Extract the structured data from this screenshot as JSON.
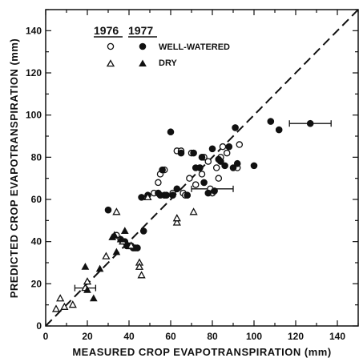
{
  "chart_data": {
    "type": "scatter",
    "xlabel": "MEASURED CROP EVAPOTRANSPIRATION (mm)",
    "ylabel": "PREDICTED CROP EVAPOTRANSPIRATION (mm)",
    "xlim": [
      0,
      150
    ],
    "ylim": [
      0,
      150
    ],
    "x_ticks": [
      0,
      20,
      40,
      60,
      80,
      100,
      120,
      140
    ],
    "y_ticks": [
      0,
      20,
      40,
      60,
      80,
      100,
      120,
      140
    ],
    "reference_line": "1:1",
    "legend": {
      "placement": "top-left",
      "years": [
        "1976",
        "1977"
      ],
      "rows": [
        "WELL-WATERED",
        "DRY"
      ]
    },
    "series": [
      {
        "name": "1976 WELL-WATERED",
        "marker": "open-circle",
        "points": [
          [
            34,
            43
          ],
          [
            36,
            41
          ],
          [
            52,
            63
          ],
          [
            54,
            68
          ],
          [
            55,
            72
          ],
          [
            57,
            74
          ],
          [
            61,
            63
          ],
          [
            63,
            83
          ],
          [
            65,
            83
          ],
          [
            66,
            63
          ],
          [
            67,
            62
          ],
          [
            69,
            70
          ],
          [
            70,
            82
          ],
          [
            72,
            67
          ],
          [
            74,
            75
          ],
          [
            75,
            72
          ],
          [
            76,
            80
          ],
          [
            78,
            78
          ],
          [
            79,
            65
          ],
          [
            80,
            63
          ],
          [
            82,
            75
          ],
          [
            83,
            70
          ],
          [
            84,
            80
          ],
          [
            85,
            85
          ],
          [
            87,
            82
          ],
          [
            92,
            75
          ],
          [
            93,
            86
          ]
        ]
      },
      {
        "name": "1977 WELL-WATERED",
        "marker": "filled-circle",
        "points": [
          [
            30,
            55
          ],
          [
            38,
            40
          ],
          [
            39,
            38
          ],
          [
            40,
            38
          ],
          [
            41,
            38
          ],
          [
            42,
            37
          ],
          [
            43,
            37
          ],
          [
            44,
            37
          ],
          [
            46,
            61
          ],
          [
            47,
            45
          ],
          [
            49,
            62
          ],
          [
            54,
            63
          ],
          [
            55,
            62
          ],
          [
            56,
            74
          ],
          [
            57,
            62
          ],
          [
            58,
            62
          ],
          [
            60,
            92
          ],
          [
            61,
            62
          ],
          [
            63,
            65
          ],
          [
            65,
            82
          ],
          [
            68,
            62
          ],
          [
            71,
            82
          ],
          [
            72,
            75
          ],
          [
            74,
            75
          ],
          [
            75,
            80
          ],
          [
            76,
            68
          ],
          [
            78,
            63
          ],
          [
            80,
            84
          ],
          [
            81,
            64
          ],
          [
            83,
            79
          ],
          [
            84,
            78
          ],
          [
            86,
            76
          ],
          [
            88,
            85
          ],
          [
            90,
            75
          ],
          [
            91,
            94
          ],
          [
            92,
            77
          ],
          [
            100,
            76
          ],
          [
            108,
            97
          ],
          [
            112,
            93
          ],
          [
            127,
            96
          ]
        ]
      },
      {
        "name": "1976 DRY",
        "marker": "open-triangle",
        "points": [
          [
            5,
            8
          ],
          [
            7,
            13
          ],
          [
            9,
            9
          ],
          [
            13,
            10
          ],
          [
            19,
            18
          ],
          [
            20,
            21
          ],
          [
            29,
            33
          ],
          [
            34,
            54
          ],
          [
            37,
            40
          ],
          [
            41,
            38
          ],
          [
            45,
            30
          ],
          [
            45,
            28
          ],
          [
            46,
            24
          ],
          [
            49,
            61
          ],
          [
            63,
            49
          ],
          [
            63,
            51
          ],
          [
            71,
            54
          ]
        ]
      },
      {
        "name": "1977 DRY",
        "marker": "filled-triangle",
        "points": [
          [
            19,
            28
          ],
          [
            20,
            17
          ],
          [
            23,
            13
          ],
          [
            26,
            27
          ],
          [
            32,
            42
          ],
          [
            33,
            43
          ],
          [
            34,
            35
          ],
          [
            36,
            41
          ],
          [
            38,
            45
          ]
        ]
      }
    ],
    "error_bars": [
      {
        "x": 19,
        "y": 18,
        "xmin": 14,
        "xmax": 24
      },
      {
        "x": 80,
        "y": 65,
        "xmin": 70,
        "xmax": 90
      },
      {
        "x": 127,
        "y": 96,
        "xmin": 117,
        "xmax": 137
      }
    ]
  },
  "axis": {
    "xlabel": "MEASURED CROP EVAPOTRANSPIRATION (mm)",
    "ylabel": "PREDICTED CROP EVAPOTRANSPIRATION (mm)",
    "x_tick_labels": [
      "0",
      "20",
      "40",
      "60",
      "80",
      "100",
      "120",
      "140"
    ],
    "y_tick_labels": [
      "0",
      "20",
      "40",
      "60",
      "80",
      "100",
      "120",
      "140"
    ]
  },
  "legend": {
    "year_1": "1976",
    "year_2": "1977",
    "row_1": "WELL-WATERED",
    "row_2": "DRY"
  },
  "colors": {
    "ink": "#111111",
    "background": "#ffffff"
  }
}
